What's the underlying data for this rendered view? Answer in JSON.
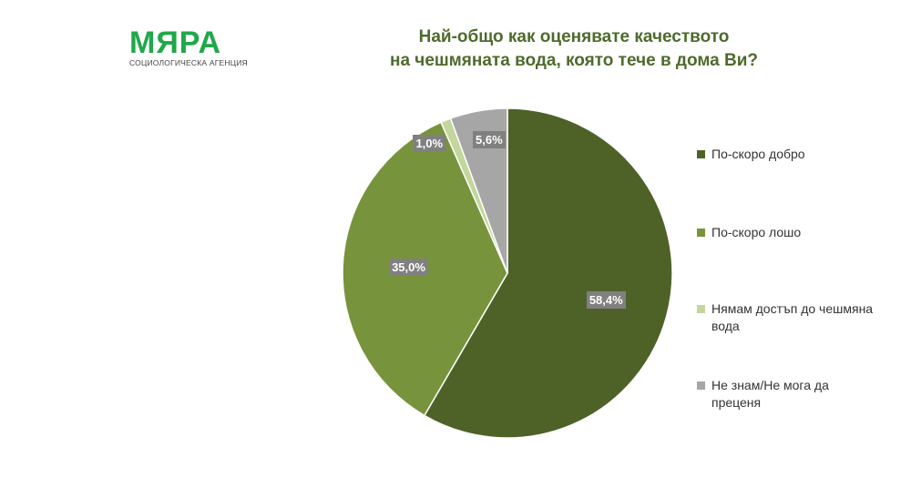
{
  "logo": {
    "name": "МЯРА",
    "subtitle": "СОЦИОЛОГИЧЕСКА АГЕНЦИЯ"
  },
  "chart_data": {
    "type": "pie",
    "title": [
      "Най-общо как оценявате качеството",
      "на чешмяната вода, която тече в дома Ви?"
    ],
    "categories": [
      "По-скоро добро",
      "По-скоро лошо",
      "Нямам достъп до чешмяна вода",
      "Не знам/Не мога да преценя"
    ],
    "values": [
      58.4,
      35.0,
      1.0,
      5.6
    ],
    "labels": [
      "58,4%",
      "35,0%",
      "1,0%",
      "5,6%"
    ],
    "colors": [
      "#4e6228",
      "#77933c",
      "#c3d69b",
      "#a6a6a6"
    ],
    "legend_position": "right"
  }
}
